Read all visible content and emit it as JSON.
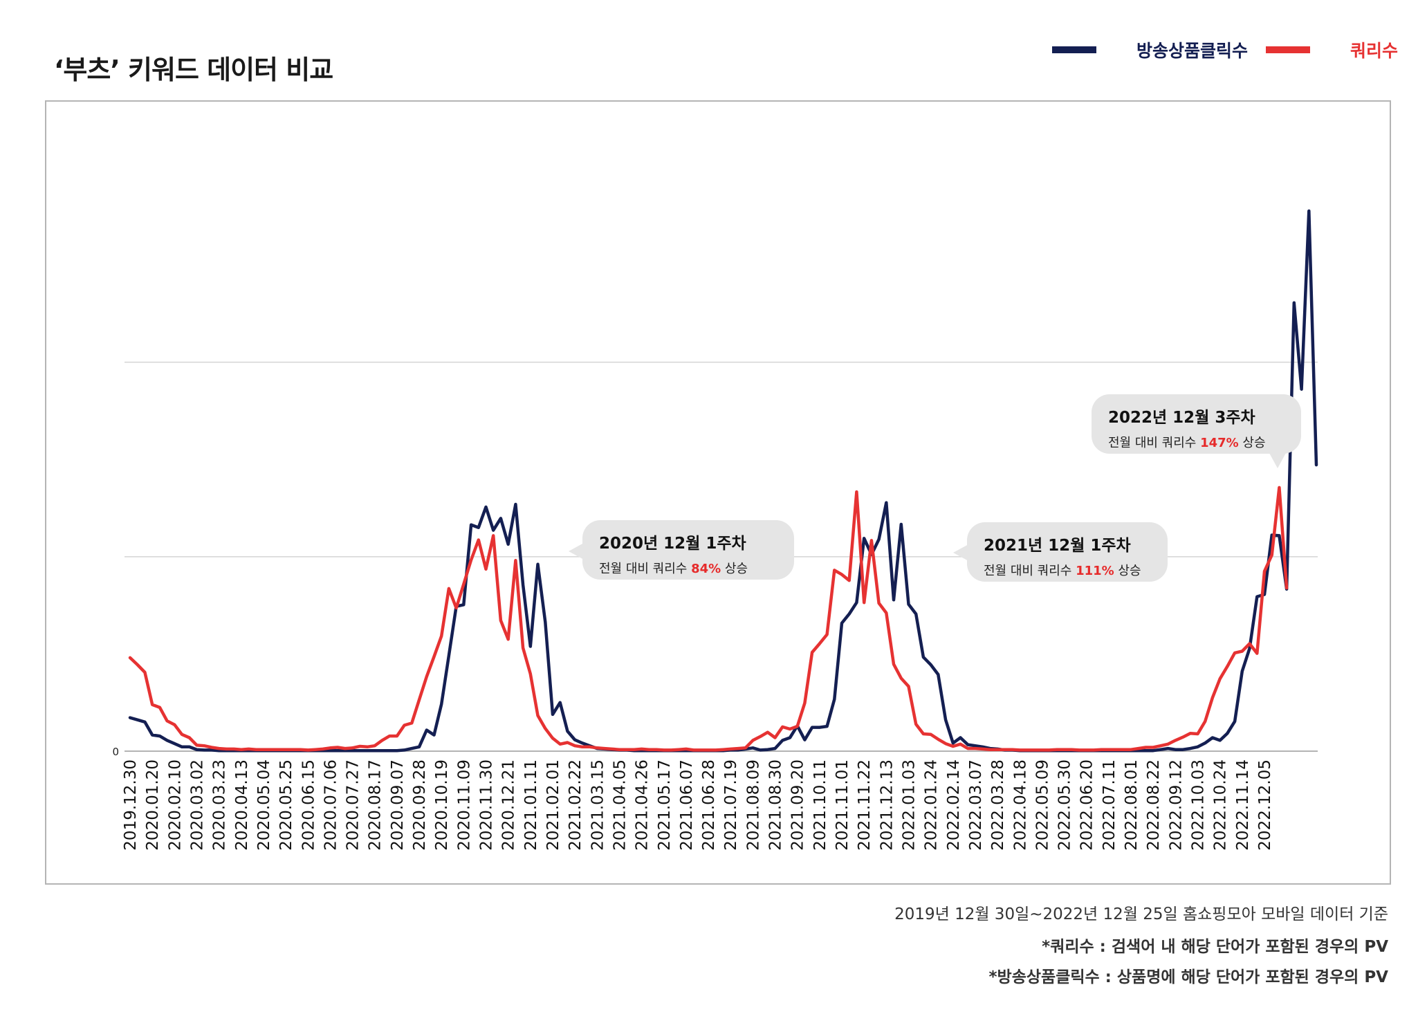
{
  "title": "‘부츠’ 키워드 데이터 비교",
  "legend": {
    "clicks_label": "방송상품클릭수",
    "queries_label": "쿼리수"
  },
  "colors": {
    "clicks": "#141f52",
    "queries": "#e63232"
  },
  "callouts": [
    {
      "heading": "2020년 12월 1주차",
      "prefix": "전월 대비 쿼리수 ",
      "pct": "84%",
      "suffix": " 상승"
    },
    {
      "heading": "2021년 12월 1주차",
      "prefix": "전월 대비 쿼리수 ",
      "pct": "111%",
      "suffix": " 상승"
    },
    {
      "heading": "2022년 12월 3주차",
      "prefix": "전월 대비 쿼리수 ",
      "pct": "147%",
      "suffix": " 상승"
    }
  ],
  "footer": {
    "line1": "2019년 12월 30일~2022년 12월 25일 홈쇼핑모아 모바일 데이터 기준",
    "line2": "*쿼리수 : 검색어 내 해당 단어가 포함된 경우의 PV",
    "line3": "*방송상품클릭수 : 상품명에 해당 단어가 포함된 경우의 PV"
  },
  "chart_data": {
    "type": "line",
    "y_tick_label": "0",
    "ylim": [
      0,
      100
    ],
    "gridlines": [
      36,
      72
    ],
    "tick_labels": [
      "2019.12.30",
      "2020.01.20",
      "2020.02.10",
      "2020.03.02",
      "2020.03.23",
      "2020.04.13",
      "2020.05.04",
      "2020.05.25",
      "2020.06.15",
      "2020.07.06",
      "2020.07.27",
      "2020.08.17",
      "2020.09.07",
      "2020.09.28",
      "2020.10.19",
      "2020.11.09",
      "2020.11.30",
      "2020.12.21",
      "2021.01.11",
      "2021.02.01",
      "2021.02.22",
      "2021.03.15",
      "2021.04.05",
      "2021.04.26",
      "2021.05.17",
      "2021.06.07",
      "2021.06.28",
      "2021.07.19",
      "2021.08.09",
      "2021.08.30",
      "2021.09.20",
      "2021.10.11",
      "2021.11.01",
      "2021.11.22",
      "2021.12.13",
      "2022.01.03",
      "2022.01.24",
      "2022.02.14",
      "2022.03.07",
      "2022.03.28",
      "2022.04.18",
      "2022.05.09",
      "2022.05.30",
      "2022.06.20",
      "2022.07.11",
      "2022.08.01",
      "2022.08.22",
      "2022.09.12",
      "2022.10.03",
      "2022.10.24",
      "2022.11.14",
      "2022.12.05"
    ],
    "series": [
      {
        "name": "방송상품클릭수",
        "values": [
          6.2,
          5.8,
          5.4,
          3.0,
          2.8,
          2.0,
          1.4,
          0.8,
          0.8,
          0.3,
          0.2,
          0.2,
          0.1,
          0.1,
          0.1,
          0.1,
          0.1,
          0.1,
          0.1,
          0.1,
          0.1,
          0.1,
          0.1,
          0.1,
          0.1,
          0.1,
          0.1,
          0.1,
          0.1,
          0.1,
          0.1,
          0.1,
          0.1,
          0.1,
          0.1,
          0.1,
          0.1,
          0.2,
          0.5,
          0.8,
          3.9,
          3.0,
          8.7,
          17.7,
          26.8,
          27.1,
          41.9,
          41.4,
          45.2,
          40.9,
          43.1,
          38.3,
          45.7,
          30.8,
          19.4,
          34.6,
          23.9,
          6.8,
          9.0,
          3.7,
          2.1,
          1.5,
          1.0,
          0.5,
          0.4,
          0.3,
          0.2,
          0.2,
          0.1,
          0.1,
          0.1,
          0.1,
          0.1,
          0.1,
          0.1,
          0.1,
          0.1,
          0.1,
          0.1,
          0.1,
          0.1,
          0.2,
          0.2,
          0.4,
          0.6,
          0.2,
          0.3,
          0.5,
          2.0,
          2.5,
          4.7,
          2.1,
          4.4,
          4.4,
          4.6,
          9.6,
          23.7,
          25.4,
          27.5,
          39.4,
          36.4,
          39.2,
          46.0,
          28.0,
          42.0,
          27.2,
          25.4,
          17.4,
          16.0,
          14.2,
          5.8,
          1.5,
          2.5,
          1.2,
          1.0,
          0.8,
          0.5,
          0.4,
          0.2,
          0.2,
          0.1,
          0.1,
          0.1,
          0.1,
          0.1,
          0.1,
          0.1,
          0.1,
          0.1,
          0.1,
          0.1,
          0.1,
          0.1,
          0.1,
          0.1,
          0.1,
          0.1,
          0.1,
          0.1,
          0.3,
          0.5,
          0.3,
          0.3,
          0.5,
          0.8,
          1.5,
          2.5,
          2.0,
          3.3,
          5.5,
          14.8,
          19.0,
          28.6,
          29.0,
          40.0,
          39.9,
          30.0,
          83.0,
          67.0,
          100.0,
          53.0
        ]
      },
      {
        "name": "쿼리수",
        "values": [
          17.3,
          16.0,
          14.6,
          8.6,
          8.1,
          5.6,
          4.9,
          3.1,
          2.5,
          1.1,
          1.0,
          0.7,
          0.5,
          0.4,
          0.4,
          0.3,
          0.4,
          0.3,
          0.3,
          0.3,
          0.3,
          0.3,
          0.3,
          0.3,
          0.2,
          0.3,
          0.4,
          0.6,
          0.7,
          0.5,
          0.6,
          0.9,
          0.8,
          1.0,
          2.0,
          2.8,
          2.8,
          4.8,
          5.2,
          9.5,
          13.8,
          17.5,
          21.3,
          30.1,
          26.5,
          30.9,
          35.4,
          39.1,
          33.7,
          39.9,
          24.2,
          20.7,
          35.3,
          19.1,
          14.3,
          6.6,
          4.2,
          2.4,
          1.3,
          1.6,
          1.0,
          0.8,
          0.8,
          0.6,
          0.5,
          0.4,
          0.3,
          0.3,
          0.3,
          0.4,
          0.3,
          0.3,
          0.2,
          0.2,
          0.3,
          0.4,
          0.2,
          0.2,
          0.2,
          0.2,
          0.3,
          0.4,
          0.5,
          0.6,
          2.0,
          2.7,
          3.5,
          2.5,
          4.5,
          4.1,
          4.6,
          8.9,
          18.3,
          19.9,
          21.6,
          33.5,
          32.7,
          31.6,
          48.0,
          27.5,
          39.0,
          27.4,
          25.6,
          16.1,
          13.5,
          12.0,
          5.0,
          3.2,
          3.1,
          2.2,
          1.4,
          0.9,
          1.3,
          0.5,
          0.5,
          0.4,
          0.3,
          0.3,
          0.3,
          0.3,
          0.2,
          0.2,
          0.2,
          0.2,
          0.2,
          0.3,
          0.3,
          0.3,
          0.2,
          0.2,
          0.2,
          0.3,
          0.3,
          0.3,
          0.3,
          0.3,
          0.5,
          0.7,
          0.7,
          1.0,
          1.3,
          2.0,
          2.6,
          3.3,
          3.2,
          5.5,
          9.9,
          13.4,
          15.7,
          18.2,
          18.5,
          19.9,
          18.1,
          33.3,
          36.3,
          48.8,
          30.2
        ]
      }
    ]
  }
}
